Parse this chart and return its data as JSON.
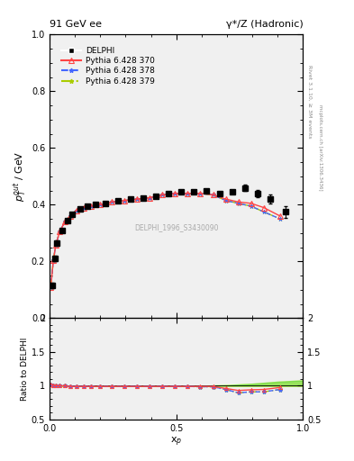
{
  "title_left": "91 GeV ee",
  "title_right": "γ*/Z (Hadronic)",
  "ylabel_main": "$p^{out}_{T}$ / GeV",
  "ylabel_ratio": "Ratio to DELPHI",
  "xlabel": "x$_p$",
  "rivet_label": "Rivet 3.1.10, ≥ 3M events",
  "arxiv_label": "mcplots.cern.ch [arXiv:1306.3436]",
  "dataset_label": "DELPHI_1996_S3430090",
  "ylim_main": [
    0.0,
    1.0
  ],
  "ylim_ratio": [
    0.5,
    2.0
  ],
  "xlim": [
    0.0,
    1.0
  ],
  "data_x": [
    0.01,
    0.02,
    0.03,
    0.05,
    0.07,
    0.09,
    0.12,
    0.15,
    0.18,
    0.22,
    0.27,
    0.32,
    0.37,
    0.42,
    0.47,
    0.52,
    0.57,
    0.62,
    0.67,
    0.72,
    0.77,
    0.82,
    0.87,
    0.93
  ],
  "data_y": [
    0.115,
    0.21,
    0.265,
    0.31,
    0.345,
    0.365,
    0.385,
    0.395,
    0.4,
    0.405,
    0.415,
    0.42,
    0.425,
    0.43,
    0.44,
    0.445,
    0.445,
    0.45,
    0.44,
    0.445,
    0.46,
    0.44,
    0.42,
    0.375
  ],
  "data_yerr": [
    0.01,
    0.01,
    0.008,
    0.007,
    0.006,
    0.006,
    0.005,
    0.005,
    0.005,
    0.005,
    0.005,
    0.005,
    0.005,
    0.005,
    0.005,
    0.005,
    0.005,
    0.005,
    0.006,
    0.007,
    0.01,
    0.012,
    0.015,
    0.02
  ],
  "py_x": [
    0.005,
    0.015,
    0.025,
    0.04,
    0.06,
    0.08,
    0.105,
    0.135,
    0.165,
    0.2,
    0.245,
    0.295,
    0.345,
    0.395,
    0.445,
    0.495,
    0.545,
    0.595,
    0.645,
    0.695,
    0.745,
    0.795,
    0.845,
    0.91
  ],
  "py370_y": [
    0.11,
    0.205,
    0.26,
    0.305,
    0.34,
    0.36,
    0.38,
    0.39,
    0.395,
    0.4,
    0.41,
    0.415,
    0.42,
    0.425,
    0.435,
    0.44,
    0.44,
    0.44,
    0.435,
    0.42,
    0.41,
    0.405,
    0.39,
    0.36
  ],
  "py378_y": [
    0.11,
    0.205,
    0.26,
    0.305,
    0.34,
    0.36,
    0.38,
    0.39,
    0.395,
    0.4,
    0.41,
    0.415,
    0.42,
    0.425,
    0.435,
    0.44,
    0.44,
    0.44,
    0.435,
    0.415,
    0.405,
    0.395,
    0.375,
    0.35
  ],
  "py379_y": [
    0.11,
    0.205,
    0.26,
    0.305,
    0.34,
    0.36,
    0.38,
    0.39,
    0.395,
    0.4,
    0.41,
    0.415,
    0.42,
    0.425,
    0.435,
    0.44,
    0.44,
    0.44,
    0.435,
    0.415,
    0.405,
    0.395,
    0.375,
    0.35
  ],
  "color_370": "#ff4444",
  "color_378": "#4466ff",
  "color_379": "#aacc00",
  "color_data": "black",
  "bg_color": "#f0f0f0",
  "ratio_band_yellow": "#eeff44",
  "ratio_band_green": "#44cc44",
  "ratio_370": [
    1.02,
    1.01,
    1.005,
    1.0,
    1.0,
    0.99,
    0.99,
    0.99,
    0.99,
    0.99,
    0.99,
    0.99,
    0.99,
    0.99,
    0.99,
    0.99,
    0.99,
    0.99,
    0.99,
    0.96,
    0.93,
    0.94,
    0.945,
    0.975
  ],
  "ratio_378": [
    1.02,
    1.01,
    1.005,
    1.0,
    1.0,
    0.99,
    0.99,
    0.99,
    0.99,
    0.99,
    0.99,
    0.99,
    0.99,
    0.99,
    0.99,
    0.99,
    0.99,
    0.985,
    0.985,
    0.945,
    0.895,
    0.91,
    0.91,
    0.945
  ],
  "ratio_379": [
    1.02,
    1.01,
    1.005,
    1.0,
    1.0,
    0.99,
    0.99,
    0.99,
    0.99,
    0.99,
    0.99,
    0.99,
    0.99,
    0.99,
    0.99,
    0.99,
    0.99,
    0.985,
    0.985,
    0.945,
    0.895,
    0.91,
    0.91,
    0.945
  ],
  "band_x": [
    0.0,
    0.1,
    0.2,
    0.3,
    0.4,
    0.5,
    0.6,
    0.7,
    0.8,
    0.9,
    1.0
  ],
  "band_upper": [
    1.0,
    1.0,
    1.0,
    1.0,
    1.0,
    1.0,
    1.0,
    1.01,
    1.03,
    1.06,
    1.08
  ],
  "band_lower": [
    1.0,
    1.0,
    1.0,
    1.0,
    1.0,
    1.0,
    1.0,
    0.995,
    0.995,
    0.995,
    0.995
  ]
}
